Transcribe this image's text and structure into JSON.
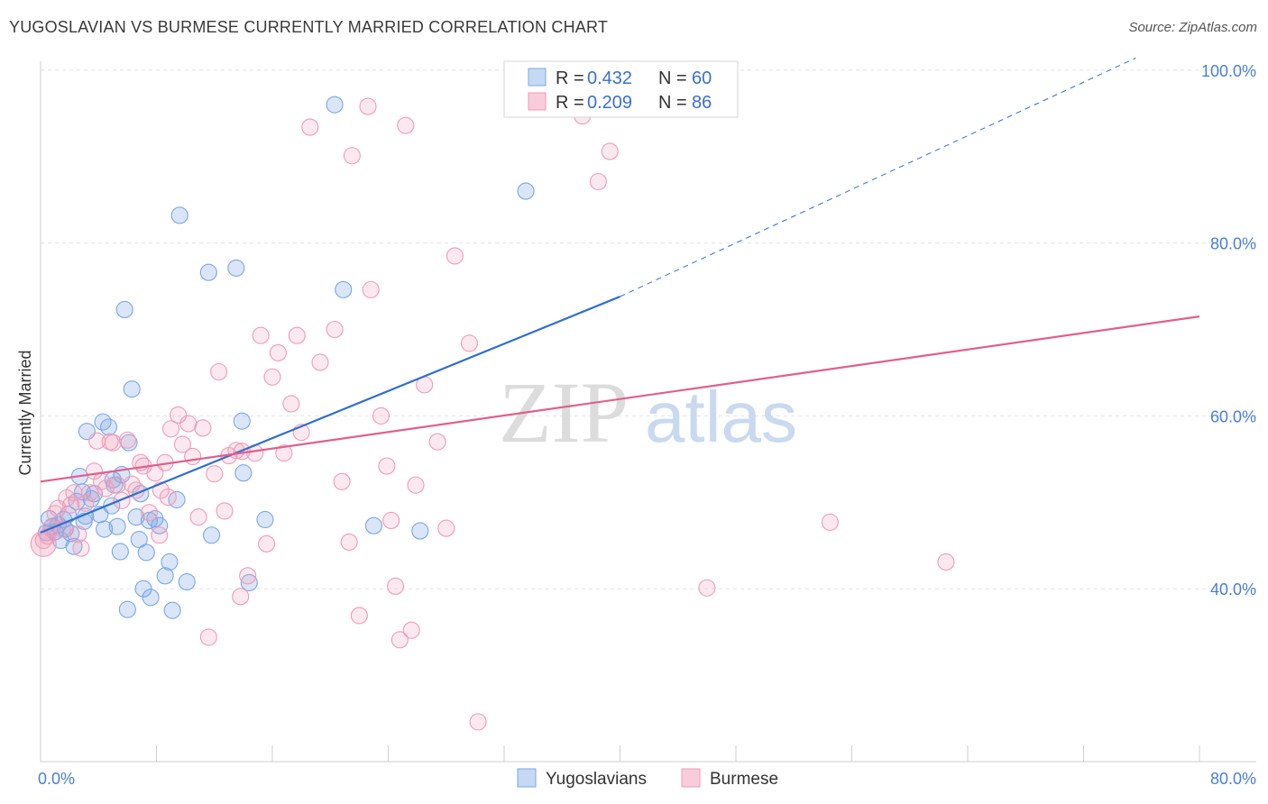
{
  "title": "YUGOSLAVIAN VS BURMESE CURRENTLY MARRIED CORRELATION CHART",
  "source": "Source: ZipAtlas.com",
  "watermark": {
    "zip": "ZIP",
    "atlas": "atlas"
  },
  "chart_data": {
    "type": "scatter",
    "title": "YUGOSLAVIAN VS BURMESE CURRENTLY MARRIED CORRELATION CHART",
    "xlabel": "",
    "ylabel": "Currently Married",
    "xlim": [
      0,
      80
    ],
    "ylim": [
      20,
      100
    ],
    "x_tick_labels": [
      "0.0%",
      "80.0%"
    ],
    "y_ticks": [
      40,
      60,
      80,
      100
    ],
    "y_tick_labels": [
      "40.0%",
      "60.0%",
      "80.0%",
      "100.0%"
    ],
    "grid": true,
    "legend_top": [
      {
        "name": "Yugoslavians",
        "r_label": "R =",
        "r": "0.432",
        "n_label": "N =",
        "n": "60",
        "color": "#7aa7e6"
      },
      {
        "name": "Burmese",
        "r_label": "R =",
        "r": "0.209",
        "n_label": "N =",
        "n": "86",
        "color": "#f09ab8"
      }
    ],
    "legend_bottom": [
      "Yugoslavians",
      "Burmese"
    ],
    "series": [
      {
        "name": "Yugoslavians",
        "color": "#7aa7e6",
        "line_color": "#2f6fd0",
        "trend": {
          "x0": 0,
          "y0": 46.5,
          "x1": 40,
          "y1": 73.8,
          "dash_to_x": 80,
          "dash_to_y": 101.4
        },
        "points": [
          [
            0.4,
            46.5
          ],
          [
            0.6,
            48.1
          ],
          [
            0.8,
            47.2
          ],
          [
            1.0,
            46.6
          ],
          [
            1.2,
            47.4
          ],
          [
            1.4,
            45.6
          ],
          [
            1.6,
            48.0
          ],
          [
            1.9,
            48.6
          ],
          [
            2.1,
            46.4
          ],
          [
            2.3,
            44.9
          ],
          [
            2.5,
            50.1
          ],
          [
            2.7,
            53.0
          ],
          [
            2.9,
            51.2
          ],
          [
            3.1,
            48.4
          ],
          [
            3.2,
            58.2
          ],
          [
            3.5,
            50.4
          ],
          [
            3.7,
            51.0
          ],
          [
            4.1,
            48.6
          ],
          [
            4.3,
            59.3
          ],
          [
            4.4,
            46.9
          ],
          [
            4.7,
            58.7
          ],
          [
            4.9,
            49.6
          ],
          [
            5.1,
            52.0
          ],
          [
            5.3,
            47.2
          ],
          [
            5.5,
            44.3
          ],
          [
            5.6,
            53.2
          ],
          [
            5.8,
            72.3
          ],
          [
            6.0,
            37.6
          ],
          [
            6.1,
            56.9
          ],
          [
            6.3,
            63.1
          ],
          [
            6.6,
            48.3
          ],
          [
            6.8,
            45.7
          ],
          [
            6.9,
            51.0
          ],
          [
            7.1,
            40.0
          ],
          [
            7.3,
            44.2
          ],
          [
            7.6,
            39.0
          ],
          [
            7.9,
            48.1
          ],
          [
            8.2,
            47.3
          ],
          [
            8.6,
            41.5
          ],
          [
            8.9,
            43.1
          ],
          [
            9.1,
            37.5
          ],
          [
            9.4,
            50.3
          ],
          [
            9.6,
            83.2
          ],
          [
            10.1,
            40.8
          ],
          [
            11.6,
            76.6
          ],
          [
            11.8,
            46.2
          ],
          [
            13.5,
            77.1
          ],
          [
            13.9,
            59.4
          ],
          [
            14.0,
            53.4
          ],
          [
            14.4,
            40.7
          ],
          [
            15.5,
            48.0
          ],
          [
            20.3,
            96.0
          ],
          [
            20.9,
            74.6
          ],
          [
            23.0,
            47.3
          ],
          [
            26.2,
            46.7
          ],
          [
            33.5,
            86.0
          ],
          [
            3.0,
            47.8
          ],
          [
            1.7,
            46.9
          ],
          [
            5.0,
            52.6
          ],
          [
            7.5,
            47.9
          ]
        ]
      },
      {
        "name": "Burmese",
        "color": "#f09ab8",
        "line_color": "#e0608e",
        "trend": {
          "x0": 0,
          "y0": 52.4,
          "x1": 80,
          "y1": 71.5
        },
        "points": [
          [
            0.2,
            45.6
          ],
          [
            0.5,
            46.1
          ],
          [
            0.7,
            47.0
          ],
          [
            1.0,
            48.7
          ],
          [
            1.2,
            49.3
          ],
          [
            1.5,
            46.9
          ],
          [
            1.8,
            50.5
          ],
          [
            2.1,
            49.7
          ],
          [
            2.3,
            51.1
          ],
          [
            2.8,
            44.7
          ],
          [
            3.1,
            49.9
          ],
          [
            3.4,
            51.1
          ],
          [
            3.7,
            53.6
          ],
          [
            3.9,
            57.1
          ],
          [
            4.2,
            52.4
          ],
          [
            4.5,
            51.6
          ],
          [
            4.8,
            57.0
          ],
          [
            5.0,
            56.9
          ],
          [
            5.3,
            52.0
          ],
          [
            5.6,
            50.2
          ],
          [
            6.0,
            57.2
          ],
          [
            6.3,
            52.1
          ],
          [
            6.6,
            51.4
          ],
          [
            6.9,
            54.6
          ],
          [
            7.1,
            54.2
          ],
          [
            7.5,
            48.8
          ],
          [
            7.9,
            53.4
          ],
          [
            8.3,
            51.4
          ],
          [
            8.6,
            54.6
          ],
          [
            8.8,
            50.6
          ],
          [
            9.0,
            58.5
          ],
          [
            9.5,
            60.1
          ],
          [
            9.8,
            56.7
          ],
          [
            10.2,
            59.1
          ],
          [
            10.5,
            55.3
          ],
          [
            10.9,
            48.3
          ],
          [
            11.2,
            58.6
          ],
          [
            11.6,
            34.4
          ],
          [
            12.0,
            53.3
          ],
          [
            12.3,
            65.1
          ],
          [
            12.7,
            49.0
          ],
          [
            13.0,
            55.4
          ],
          [
            13.5,
            56.0
          ],
          [
            13.8,
            39.1
          ],
          [
            14.3,
            41.5
          ],
          [
            14.8,
            55.7
          ],
          [
            15.2,
            69.3
          ],
          [
            15.6,
            45.2
          ],
          [
            16.0,
            64.5
          ],
          [
            16.4,
            67.3
          ],
          [
            16.8,
            55.7
          ],
          [
            17.3,
            61.4
          ],
          [
            17.7,
            69.3
          ],
          [
            18.0,
            58.1
          ],
          [
            18.6,
            93.4
          ],
          [
            19.3,
            66.2
          ],
          [
            20.3,
            70.0
          ],
          [
            20.8,
            52.4
          ],
          [
            21.3,
            45.4
          ],
          [
            21.5,
            90.1
          ],
          [
            22.0,
            36.9
          ],
          [
            22.6,
            95.8
          ],
          [
            22.8,
            74.6
          ],
          [
            23.5,
            60.0
          ],
          [
            23.9,
            54.2
          ],
          [
            24.5,
            40.3
          ],
          [
            24.8,
            34.1
          ],
          [
            25.2,
            93.6
          ],
          [
            25.6,
            35.2
          ],
          [
            25.9,
            52.0
          ],
          [
            26.5,
            63.6
          ],
          [
            27.4,
            57.0
          ],
          [
            28.0,
            47.0
          ],
          [
            28.6,
            78.5
          ],
          [
            29.6,
            68.4
          ],
          [
            30.2,
            24.6
          ],
          [
            37.4,
            94.7
          ],
          [
            38.5,
            87.1
          ],
          [
            39.3,
            90.6
          ],
          [
            46.0,
            40.1
          ],
          [
            54.5,
            47.7
          ],
          [
            62.5,
            43.1
          ],
          [
            2.6,
            46.3
          ],
          [
            8.2,
            46.2
          ],
          [
            13.9,
            55.9
          ],
          [
            24.2,
            47.9
          ]
        ]
      }
    ]
  }
}
